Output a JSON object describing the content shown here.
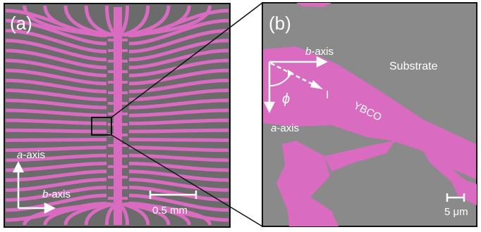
{
  "panel_a": {
    "label": "(a)",
    "axis_a": {
      "prefix": "a",
      "suffix": "-axis"
    },
    "axis_b": {
      "prefix": "b",
      "suffix": "-axis"
    },
    "scale_bar": "0.5 mm"
  },
  "panel_b": {
    "label": "(b)",
    "axis_b": {
      "prefix": "b",
      "suffix": "-axis"
    },
    "axis_a": {
      "prefix": "a",
      "suffix": "-axis"
    },
    "angle": "ϕ",
    "current": "I",
    "substrate": "Substrate",
    "material": "YBCO",
    "scale_bar": "5 μm"
  },
  "colors": {
    "substrate_a": "#6b6b6b",
    "substrate_b": "#8a8a8a",
    "ybco": "#d96bc1",
    "border": "#111111",
    "annotation": "#ffffff"
  }
}
